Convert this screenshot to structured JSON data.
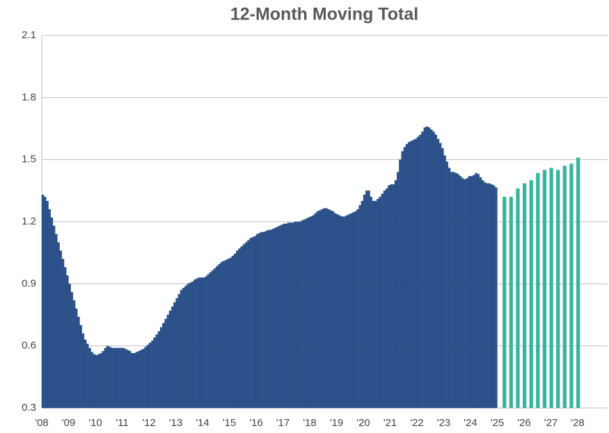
{
  "chart_data": {
    "type": "bar",
    "title": "12-Month Moving Total",
    "categories": [
      "'08",
      null,
      null,
      null,
      null,
      null,
      null,
      null,
      null,
      null,
      null,
      null,
      "'09",
      null,
      null,
      null,
      null,
      null,
      null,
      null,
      null,
      null,
      null,
      null,
      "'10",
      null,
      null,
      null,
      null,
      null,
      null,
      null,
      null,
      null,
      null,
      null,
      "'11",
      null,
      null,
      null,
      null,
      null,
      null,
      null,
      null,
      null,
      null,
      null,
      "'12",
      null,
      null,
      null,
      null,
      null,
      null,
      null,
      null,
      null,
      null,
      null,
      "'13",
      null,
      null,
      null,
      null,
      null,
      null,
      null,
      null,
      null,
      null,
      null,
      "'14",
      null,
      null,
      null,
      null,
      null,
      null,
      null,
      null,
      null,
      null,
      null,
      "'15",
      null,
      null,
      null,
      null,
      null,
      null,
      null,
      null,
      null,
      null,
      null,
      "'16",
      null,
      null,
      null,
      null,
      null,
      null,
      null,
      null,
      null,
      null,
      null,
      "'17",
      null,
      null,
      null,
      null,
      null,
      null,
      null,
      null,
      null,
      null,
      null,
      "'18",
      null,
      null,
      null,
      null,
      null,
      null,
      null,
      null,
      null,
      null,
      null,
      "'19",
      null,
      null,
      null,
      null,
      null,
      null,
      null,
      null,
      null,
      null,
      null,
      "'20",
      null,
      null,
      null,
      null,
      null,
      null,
      null,
      null,
      null,
      null,
      null,
      "'21",
      null,
      null,
      null,
      null,
      null,
      null,
      null,
      null,
      null,
      null,
      null,
      "'22",
      null,
      null,
      null,
      null,
      null,
      null,
      null,
      null,
      null,
      null,
      null,
      "'23",
      null,
      null,
      null,
      null,
      null,
      null,
      null,
      null,
      null,
      null,
      null,
      "'24",
      null,
      null,
      null,
      null,
      null,
      null,
      null,
      null,
      null,
      null,
      null,
      "'25",
      null,
      null,
      null,
      null,
      null,
      null,
      null,
      null,
      null,
      null,
      null,
      "'26",
      null,
      null,
      null,
      null,
      null,
      null,
      null,
      null,
      null,
      null,
      null,
      "'27",
      null,
      null,
      null,
      null,
      null,
      null,
      null,
      null,
      null,
      null,
      null,
      "'28"
    ],
    "series": [
      {
        "color": "#2b5089",
        "values": [
          1.33,
          1.32,
          1.3,
          1.26,
          1.22,
          1.18,
          1.14,
          1.1,
          1.06,
          1.02,
          0.98,
          0.94,
          0.9,
          0.86,
          0.82,
          0.78,
          0.74,
          0.7,
          0.66,
          0.63,
          0.61,
          0.59,
          0.57,
          0.56,
          0.555,
          0.56,
          0.565,
          0.575,
          0.59,
          0.6,
          0.595,
          0.59,
          0.59,
          0.59,
          0.59,
          0.59,
          0.59,
          0.585,
          0.58,
          0.575,
          0.565,
          0.565,
          0.57,
          0.575,
          0.58,
          0.585,
          0.595,
          0.605,
          0.615,
          0.625,
          0.64,
          0.655,
          0.67,
          0.69,
          0.71,
          0.73,
          0.75,
          0.77,
          0.79,
          0.81,
          0.83,
          0.85,
          0.87,
          0.88,
          0.89,
          0.9,
          0.905,
          0.91,
          0.92,
          0.925,
          0.93,
          0.93,
          0.93,
          0.935,
          0.945,
          0.955,
          0.965,
          0.975,
          0.985,
          0.995,
          1.005,
          1.01,
          1.015,
          1.02,
          1.025,
          1.035,
          1.045,
          1.06,
          1.07,
          1.08,
          1.09,
          1.1,
          1.11,
          1.12,
          1.125,
          1.13,
          1.14,
          1.145,
          1.15,
          1.15,
          1.155,
          1.16,
          1.16,
          1.165,
          1.17,
          1.175,
          1.18,
          1.185,
          1.19,
          1.19,
          1.195,
          1.195,
          1.195,
          1.2,
          1.2,
          1.2,
          1.205,
          1.21,
          1.215,
          1.22,
          1.225,
          1.23,
          1.24,
          1.25,
          1.255,
          1.26,
          1.265,
          1.265,
          1.26,
          1.255,
          1.25,
          1.24,
          1.235,
          1.23,
          1.225,
          1.225,
          1.23,
          1.235,
          1.24,
          1.245,
          1.25,
          1.26,
          1.28,
          1.3,
          1.33,
          1.35,
          1.35,
          1.32,
          1.3,
          1.3,
          1.31,
          1.32,
          1.335,
          1.35,
          1.36,
          1.375,
          1.38,
          1.38,
          1.4,
          1.44,
          1.5,
          1.54,
          1.56,
          1.575,
          1.585,
          1.59,
          1.595,
          1.6,
          1.61,
          1.62,
          1.635,
          1.655,
          1.66,
          1.655,
          1.645,
          1.635,
          1.62,
          1.6,
          1.58,
          1.555,
          1.52,
          1.49,
          1.46,
          1.44,
          1.44,
          1.435,
          1.43,
          1.42,
          1.41,
          1.405,
          1.41,
          1.42,
          1.42,
          1.425,
          1.435,
          1.43,
          1.415,
          1.4,
          1.39,
          1.385,
          1.385,
          1.38,
          1.375,
          1.365,
          null,
          null,
          null,
          null,
          null,
          null,
          null,
          null,
          null,
          null,
          null,
          null,
          null,
          null,
          null,
          null,
          null,
          null,
          null,
          null,
          null,
          null,
          null,
          null,
          null,
          null,
          null,
          null,
          null,
          null,
          null,
          null,
          null,
          null,
          null,
          null,
          null
        ]
      },
      {
        "color": "#35b59b",
        "values": [
          null,
          null,
          null,
          null,
          null,
          null,
          null,
          null,
          null,
          null,
          null,
          null,
          null,
          null,
          null,
          null,
          null,
          null,
          null,
          null,
          null,
          null,
          null,
          null,
          null,
          null,
          null,
          null,
          null,
          null,
          null,
          null,
          null,
          null,
          null,
          null,
          null,
          null,
          null,
          null,
          null,
          null,
          null,
          null,
          null,
          null,
          null,
          null,
          null,
          null,
          null,
          null,
          null,
          null,
          null,
          null,
          null,
          null,
          null,
          null,
          null,
          null,
          null,
          null,
          null,
          null,
          null,
          null,
          null,
          null,
          null,
          null,
          null,
          null,
          null,
          null,
          null,
          null,
          null,
          null,
          null,
          null,
          null,
          null,
          null,
          null,
          null,
          null,
          null,
          null,
          null,
          null,
          null,
          null,
          null,
          null,
          null,
          null,
          null,
          null,
          null,
          null,
          null,
          null,
          null,
          null,
          null,
          null,
          null,
          null,
          null,
          null,
          null,
          null,
          null,
          null,
          null,
          null,
          null,
          null,
          null,
          null,
          null,
          null,
          null,
          null,
          null,
          null,
          null,
          null,
          null,
          null,
          null,
          null,
          null,
          null,
          null,
          null,
          null,
          null,
          null,
          null,
          null,
          null,
          null,
          null,
          null,
          null,
          null,
          null,
          null,
          null,
          null,
          null,
          null,
          null,
          null,
          null,
          null,
          null,
          null,
          null,
          null,
          null,
          null,
          null,
          null,
          null,
          null,
          null,
          null,
          null,
          null,
          null,
          null,
          null,
          null,
          null,
          null,
          null,
          null,
          null,
          null,
          null,
          null,
          null,
          null,
          null,
          null,
          null,
          null,
          null,
          null,
          null,
          null,
          null,
          null,
          null,
          null,
          null,
          null,
          null,
          null,
          null,
          null,
          null,
          null,
          1.32,
          null,
          null,
          1.32,
          null,
          null,
          1.36,
          null,
          null,
          1.385,
          null,
          null,
          1.4,
          null,
          null,
          1.435,
          null,
          null,
          1.45,
          null,
          null,
          1.46,
          null,
          null,
          1.45,
          null,
          null,
          1.47,
          null,
          null,
          1.48,
          null,
          null,
          1.51
        ]
      }
    ],
    "ylim": [
      0.3,
      2.1
    ],
    "yticks": [
      0.3,
      0.6,
      0.9,
      1.2,
      1.5,
      1.8,
      2.1
    ],
    "grid": true
  }
}
